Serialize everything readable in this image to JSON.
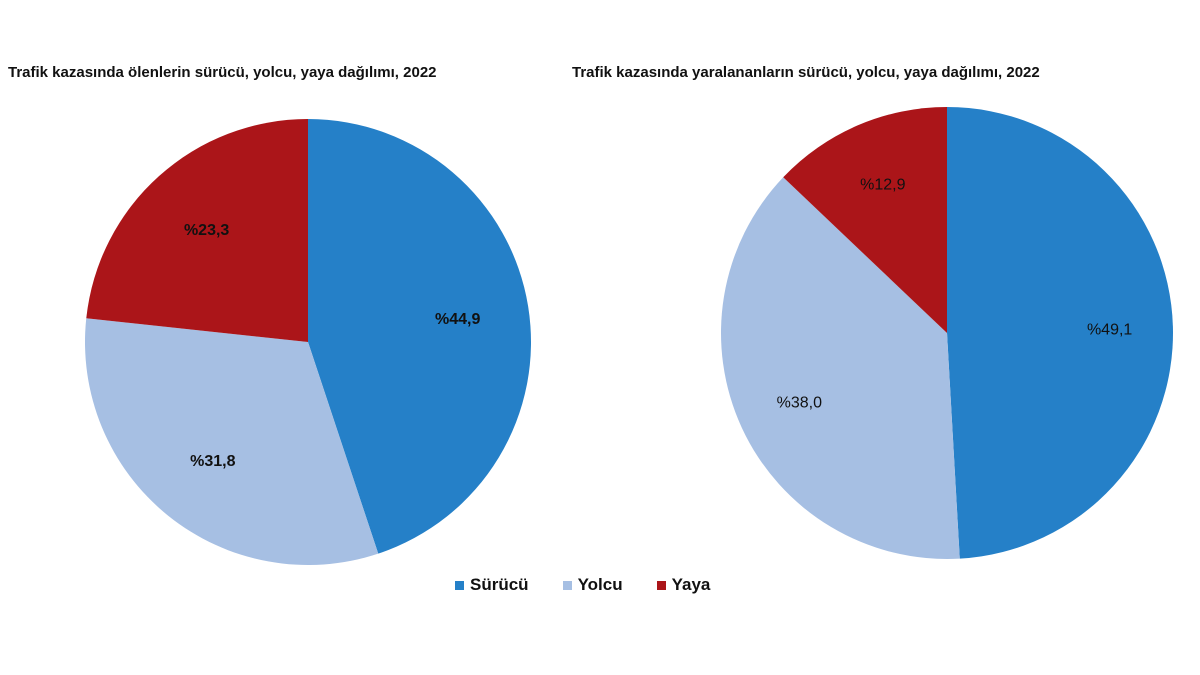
{
  "chart_data": [
    {
      "type": "pie",
      "title": "Trafik kazasında ölenlerin sürücü, yolcu, yaya dağılımı,  2022",
      "categories": [
        "Sürücü",
        "Yolcu",
        "Yaya"
      ],
      "values": [
        44.9,
        31.8,
        23.3
      ],
      "labels": [
        "%44,9",
        "%31,8",
        "%23,3"
      ],
      "start": "top",
      "direction": "clockwise"
    },
    {
      "type": "pie",
      "title": "Trafik kazasında yaralananların sürücü, yolcu, yaya dağılımı, 2022",
      "categories": [
        "Sürücü",
        "Yolcu",
        "Yaya"
      ],
      "values": [
        49.1,
        38.0,
        12.9
      ],
      "labels": [
        "%49,1",
        "%38,0",
        "%12,9"
      ],
      "start": "top",
      "direction": "clockwise"
    }
  ],
  "legend": {
    "placement": "bottom",
    "items": [
      {
        "label": "Sürücü",
        "color": "#2580c8"
      },
      {
        "label": "Yolcu",
        "color": "#a6bfe3"
      },
      {
        "label": "Yaya",
        "color": "#ab1519"
      }
    ]
  }
}
